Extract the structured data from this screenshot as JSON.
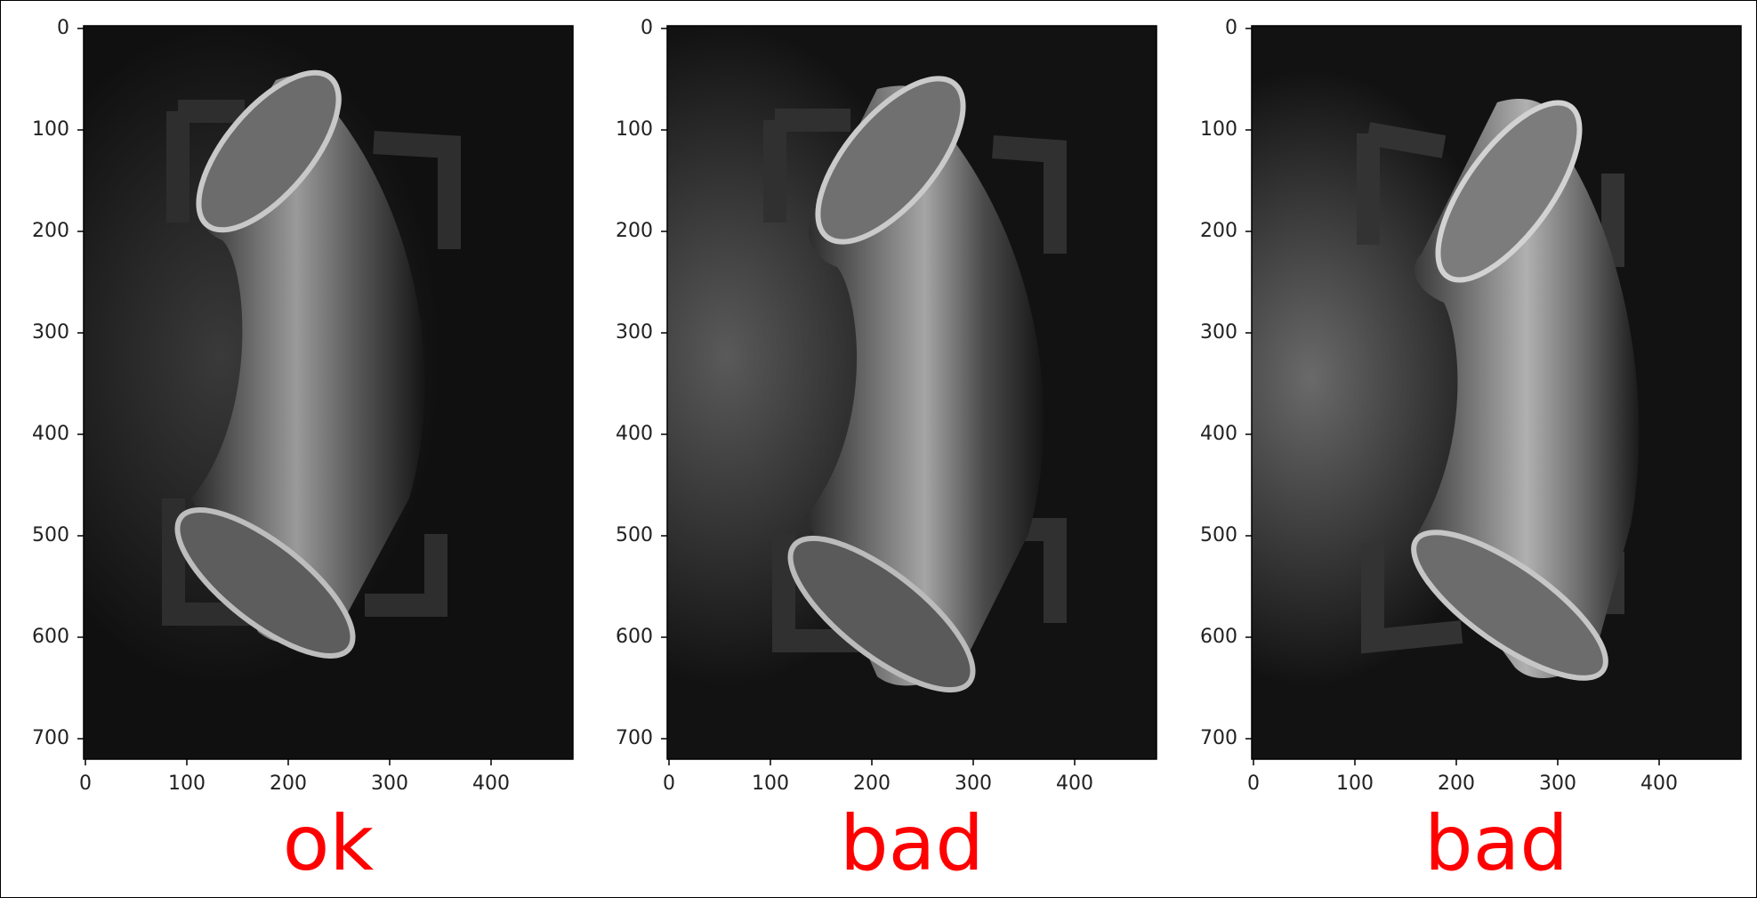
{
  "figure": {
    "caption_color": "#ff0000",
    "panels": [
      {
        "caption": "ok",
        "x_ticks": [
          "0",
          "100",
          "200",
          "300",
          "400"
        ],
        "y_ticks": [
          "0",
          "100",
          "200",
          "300",
          "400",
          "500",
          "600",
          "700"
        ]
      },
      {
        "caption": "bad",
        "x_ticks": [
          "0",
          "100",
          "200",
          "300",
          "400"
        ],
        "y_ticks": [
          "0",
          "100",
          "200",
          "300",
          "400",
          "500",
          "600",
          "700"
        ]
      },
      {
        "caption": "bad",
        "x_ticks": [
          "0",
          "100",
          "200",
          "300",
          "400"
        ],
        "y_ticks": [
          "0",
          "100",
          "200",
          "300",
          "400",
          "500",
          "600",
          "700"
        ]
      }
    ]
  }
}
